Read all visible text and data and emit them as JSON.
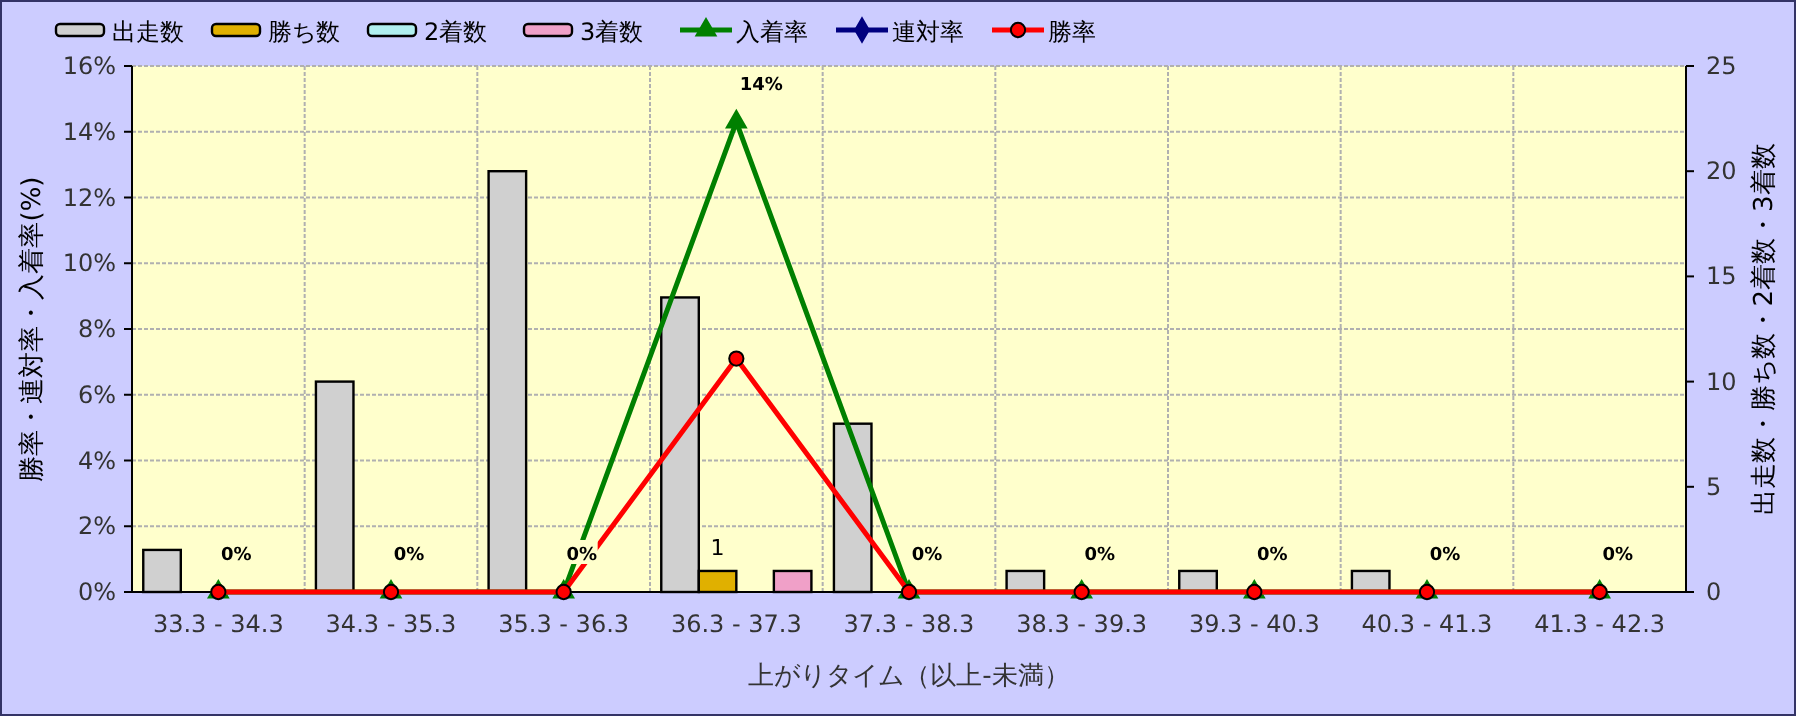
{
  "chart_data": {
    "type": "bar",
    "xlabel": "上がりタイム（以上-未満）",
    "ylabel": "勝率・連対率・入着率(%)",
    "y2label": "出走数・勝ち数・2着数・3着数",
    "categories": [
      "33.3 - 34.3",
      "34.3 - 35.3",
      "35.3 - 36.3",
      "36.3 - 37.3",
      "37.3 - 38.3",
      "38.3 - 39.3",
      "39.3 - 40.3",
      "40.3 - 41.3",
      "41.3 - 42.3"
    ],
    "series": [
      {
        "name": "出走数",
        "axis": "y2",
        "color": "#d0d0d0",
        "values": [
          2,
          10,
          20,
          14,
          8,
          1,
          1,
          1,
          0
        ]
      },
      {
        "name": "勝ち数",
        "axis": "y2",
        "color": "#e0b000",
        "values": [
          0,
          0,
          0,
          1,
          0,
          0,
          0,
          0,
          0
        ],
        "value_labels": [
          null,
          null,
          null,
          "1",
          null,
          null,
          null,
          null,
          null
        ]
      },
      {
        "name": "2着数",
        "axis": "y2",
        "color": "#b0f0f0",
        "values": [
          0,
          0,
          0,
          0,
          0,
          0,
          0,
          0,
          0
        ]
      },
      {
        "name": "3着数",
        "axis": "y2",
        "color": "#f0a0c8",
        "values": [
          0,
          0,
          0,
          1,
          0,
          0,
          0,
          0,
          0
        ]
      },
      {
        "name": "入着率",
        "type": "line",
        "color": "#008000",
        "marker": "triangle",
        "values": [
          0,
          0,
          0,
          14.3,
          0,
          0,
          0,
          0,
          0
        ],
        "value_labels": [
          "0%",
          "0%",
          "0%",
          "14%",
          "0%",
          "0%",
          "0%",
          "0%",
          "0%"
        ]
      },
      {
        "name": "連対率",
        "type": "line",
        "color": "#000080",
        "marker": "diamond",
        "values": [
          null,
          null,
          null,
          null,
          null,
          null,
          null,
          null,
          null
        ]
      },
      {
        "name": "勝率",
        "type": "line",
        "color": "#ff0000",
        "marker": "circle",
        "values": [
          0,
          0,
          0,
          7.1,
          0,
          0,
          0,
          0,
          0
        ]
      }
    ],
    "ylim": [
      0,
      16
    ],
    "yticks": [
      {
        "value": 0,
        "label": "0%"
      },
      {
        "value": 2,
        "label": "2%"
      },
      {
        "value": 4,
        "label": "4%"
      },
      {
        "value": 6,
        "label": "6%"
      },
      {
        "value": 8,
        "label": "8%"
      },
      {
        "value": 10,
        "label": "10%"
      },
      {
        "value": 12,
        "label": "12%"
      },
      {
        "value": 14,
        "label": "14%"
      },
      {
        "value": 16,
        "label": "16%"
      }
    ],
    "y2lim": [
      0,
      25
    ],
    "y2ticks": [
      0,
      5,
      10,
      15,
      20,
      25
    ],
    "grid": true,
    "legend": "top left"
  }
}
